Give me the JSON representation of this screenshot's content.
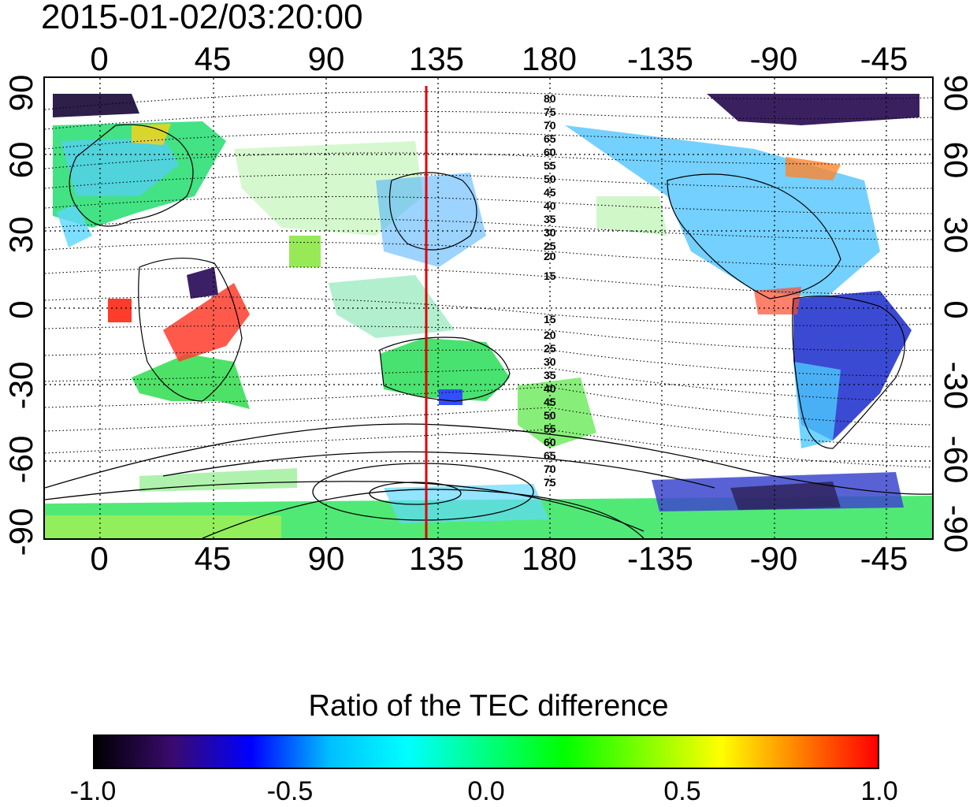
{
  "timestamp": "2015-01-02/03:20:00",
  "top_longitude_ticks": [
    "0",
    "45",
    "90",
    "135",
    "180",
    "-135",
    "-90",
    "-45"
  ],
  "bottom_longitude_ticks": [
    "0",
    "45",
    "90",
    "135",
    "180",
    "-135",
    "-90",
    "-45"
  ],
  "left_latitude_ticks": [
    "90",
    "60",
    "30",
    "0",
    "-30",
    "-60",
    "-90"
  ],
  "right_latitude_ticks": [
    "90",
    "60",
    "30",
    "0",
    "-30",
    "-60",
    "-90"
  ],
  "magnetic_latitude_labels_north": [
    "80",
    "75",
    "70",
    "65",
    "60",
    "55",
    "50",
    "45",
    "40",
    "35",
    "30",
    "25",
    "20",
    "15"
  ],
  "magnetic_latitude_labels_south": [
    "15",
    "20",
    "25",
    "30",
    "35",
    "40",
    "45",
    "50",
    "55",
    "60",
    "65",
    "70",
    "75"
  ],
  "marker_meridian_longitude": 130,
  "colorbar": {
    "title": "Ratio of the TEC difference",
    "ticks": [
      "-1.0",
      "-0.5",
      "0.0",
      "0.5",
      "1.0"
    ],
    "range": [
      -1.0,
      1.0
    ],
    "colors": [
      "#000000",
      "#3a0a6e",
      "#0000ff",
      "#00bfff",
      "#00ffff",
      "#00ff7f",
      "#00ff00",
      "#7fff00",
      "#ffff00",
      "#ff8000",
      "#ff0000"
    ]
  },
  "colors": {
    "marker_meridian": "#e00000",
    "coastline": "#000000",
    "grid": "#000000"
  }
}
